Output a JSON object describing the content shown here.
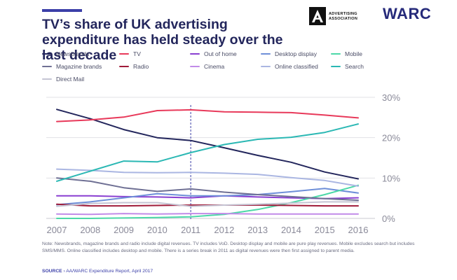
{
  "header": {
    "title": "TV’s share of UK advertising expenditure has held steady over the last decade",
    "aa_logo_text": "ADVERTISING\nASSOCIATION",
    "warc_logo_text": "WARC"
  },
  "note": "Note: Newsbrands, magazine brands and radio include digital revenues. TV includes VoD. Desktop display and mobile are pure play revenues. Mobile excludes search but includes SMS/MMS. Online classified includes desktop and mobile. There is a series break in 2011 as digital revenues were then first assigned to parent media.",
  "source": {
    "label": "SOURCE",
    "separator": "›",
    "text": "AA/WARC Expenditure Report, April 2017"
  },
  "chart_data": {
    "type": "line",
    "title": "TV’s share of UK advertising expenditure has held steady over the last decade",
    "xlabel": "",
    "ylabel": "",
    "x": [
      "2007",
      "2008",
      "2009",
      "2010",
      "2011",
      "2012",
      "2013",
      "2014",
      "2015",
      "2016"
    ],
    "ylim": [
      0,
      30
    ],
    "y_ticks": [
      "0%",
      "10%",
      "20%",
      "30%"
    ],
    "grid": true,
    "legend_position": "top",
    "series_break_at": "2011",
    "series": [
      {
        "name": "Newsbrands",
        "color": "#23265c",
        "values": [
          27.0,
          24.7,
          22.0,
          20.0,
          19.3,
          17.5,
          15.6,
          13.9,
          11.5,
          9.8
        ]
      },
      {
        "name": "TV",
        "color": "#e8395a",
        "values": [
          24.0,
          24.4,
          25.1,
          26.7,
          26.9,
          26.4,
          26.3,
          26.2,
          25.6,
          24.9
        ]
      },
      {
        "name": "Out of home",
        "color": "#8a3fd1",
        "values": [
          5.6,
          5.6,
          5.4,
          5.3,
          5.1,
          5.6,
          5.3,
          5.1,
          4.9,
          5.1
        ]
      },
      {
        "name": "Desktop display",
        "color": "#6e8fd8",
        "values": [
          3.4,
          4.1,
          5.1,
          6.1,
          5.6,
          5.6,
          5.9,
          6.6,
          7.4,
          6.3
        ]
      },
      {
        "name": "Mobile",
        "color": "#4cd8a8",
        "values": [
          0.0,
          0.0,
          0.1,
          0.2,
          0.4,
          1.0,
          2.2,
          3.9,
          5.9,
          8.2
        ]
      },
      {
        "name": "Magazine brands",
        "color": "#6f7094",
        "values": [
          10.0,
          9.2,
          7.6,
          6.7,
          7.3,
          6.5,
          5.9,
          5.4,
          4.9,
          4.5
        ]
      },
      {
        "name": "Radio",
        "color": "#a01c3a",
        "values": [
          3.5,
          3.1,
          3.1,
          3.2,
          3.3,
          3.3,
          3.3,
          3.2,
          3.1,
          3.1
        ]
      },
      {
        "name": "Cinema",
        "color": "#c18be8",
        "values": [
          1.1,
          1.0,
          1.2,
          1.1,
          1.2,
          1.2,
          1.1,
          1.1,
          1.1,
          1.1
        ]
      },
      {
        "name": "Online classified",
        "color": "#aab6e2",
        "values": [
          12.2,
          11.9,
          11.4,
          11.3,
          11.4,
          11.2,
          10.9,
          10.1,
          9.4,
          8.0
        ]
      },
      {
        "name": "Search",
        "color": "#2bb8b4",
        "values": [
          9.2,
          11.7,
          14.2,
          14.0,
          16.3,
          18.3,
          19.6,
          20.1,
          21.3,
          23.4
        ]
      },
      {
        "name": "Direct Mail",
        "color": "#c5c5d4",
        "values": [
          3.0,
          3.7,
          3.9,
          3.9,
          3.0,
          3.3,
          3.5,
          3.8,
          4.1,
          4.1
        ]
      }
    ]
  }
}
